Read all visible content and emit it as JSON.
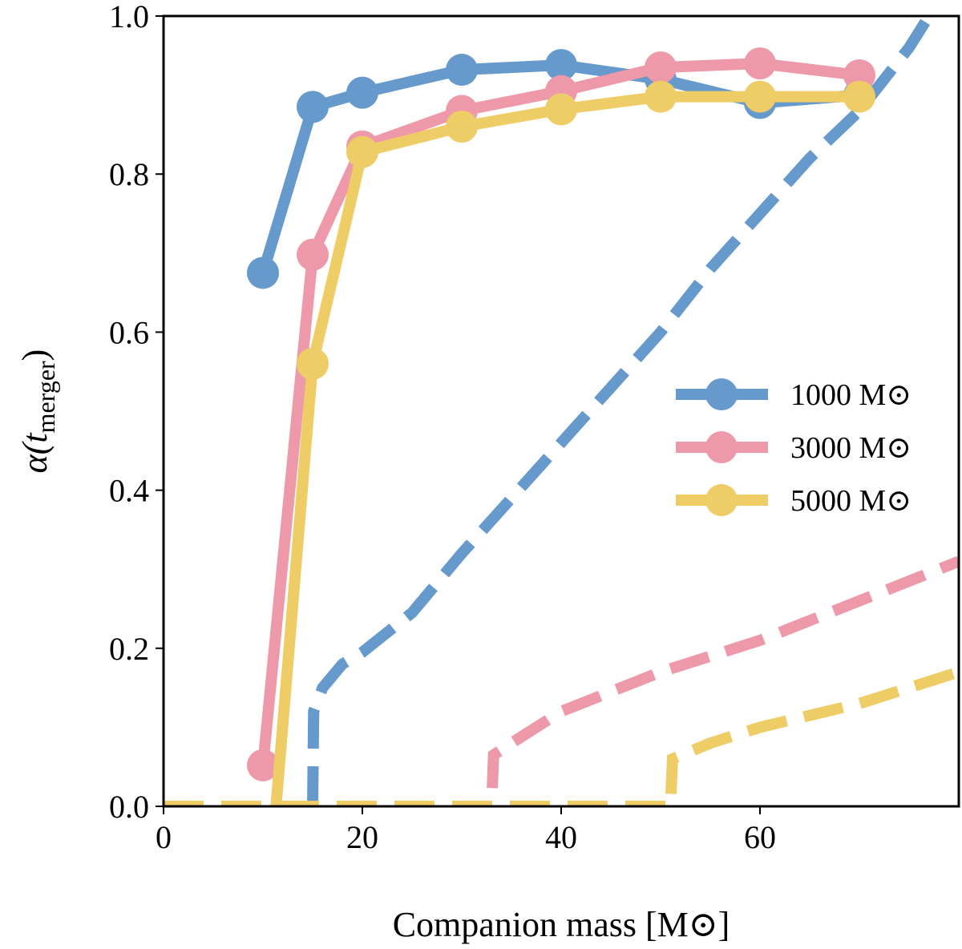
{
  "chart_data": {
    "type": "line",
    "title": "",
    "xlabel": "Companion mass [M⊙]",
    "ylabel_main": "α(t",
    "ylabel_sub": "merger",
    "ylabel_close": ")",
    "xlim": [
      0,
      80
    ],
    "ylim": [
      0,
      1.0
    ],
    "xticks": [
      "0",
      "20",
      "40",
      "60"
    ],
    "xtick_values": [
      0,
      20,
      40,
      60
    ],
    "yticks": [
      "0.0",
      "0.2",
      "0.4",
      "0.6",
      "0.8",
      "1.0"
    ],
    "ytick_values": [
      0,
      0.2,
      0.4,
      0.6,
      0.8,
      1.0
    ],
    "grid": false,
    "legend_position": "center-right",
    "series": [
      {
        "name": "1000 M⊙",
        "color": "#6699CC",
        "style": "solid-markers",
        "x": [
          10,
          15,
          20,
          30,
          40,
          50,
          60,
          70
        ],
        "y": [
          0.675,
          0.885,
          0.903,
          0.932,
          0.938,
          0.92,
          0.89,
          0.9
        ]
      },
      {
        "name": "3000 M⊙",
        "color": "#EE99AA",
        "style": "solid-markers",
        "x": [
          10,
          15,
          20,
          30,
          40,
          50,
          60,
          70
        ],
        "y": [
          0.052,
          0.698,
          0.835,
          0.88,
          0.905,
          0.935,
          0.94,
          0.925
        ]
      },
      {
        "name": "5000 M⊙",
        "color": "#EECC66",
        "style": "solid-markers",
        "x": [
          10,
          15,
          20,
          30,
          40,
          50,
          60,
          70
        ],
        "y": [
          -0.2,
          0.56,
          0.828,
          0.86,
          0.882,
          0.898,
          0.898,
          0.898
        ]
      }
    ],
    "dashed_series": [
      {
        "color": "#6699CC",
        "x": [
          15,
          15.1,
          16,
          18,
          20,
          25,
          30,
          35,
          40,
          45,
          50,
          55,
          60,
          65,
          70,
          75,
          77
        ],
        "y": [
          0.0,
          0.12,
          0.15,
          0.18,
          0.195,
          0.245,
          0.32,
          0.39,
          0.46,
          0.53,
          0.6,
          0.68,
          0.75,
          0.82,
          0.88,
          0.96,
          1.0
        ]
      },
      {
        "color": "#EE99AA",
        "x": [
          0,
          33,
          33.2,
          35,
          40,
          50,
          60,
          70,
          80
        ],
        "y": [
          0,
          0,
          0.065,
          0.08,
          0.12,
          0.17,
          0.21,
          0.26,
          0.31
        ]
      },
      {
        "color": "#EECC66",
        "x": [
          0,
          51,
          51.2,
          55,
          60,
          70,
          80
        ],
        "y": [
          0,
          0,
          0.06,
          0.08,
          0.1,
          0.13,
          0.17
        ]
      }
    ]
  }
}
